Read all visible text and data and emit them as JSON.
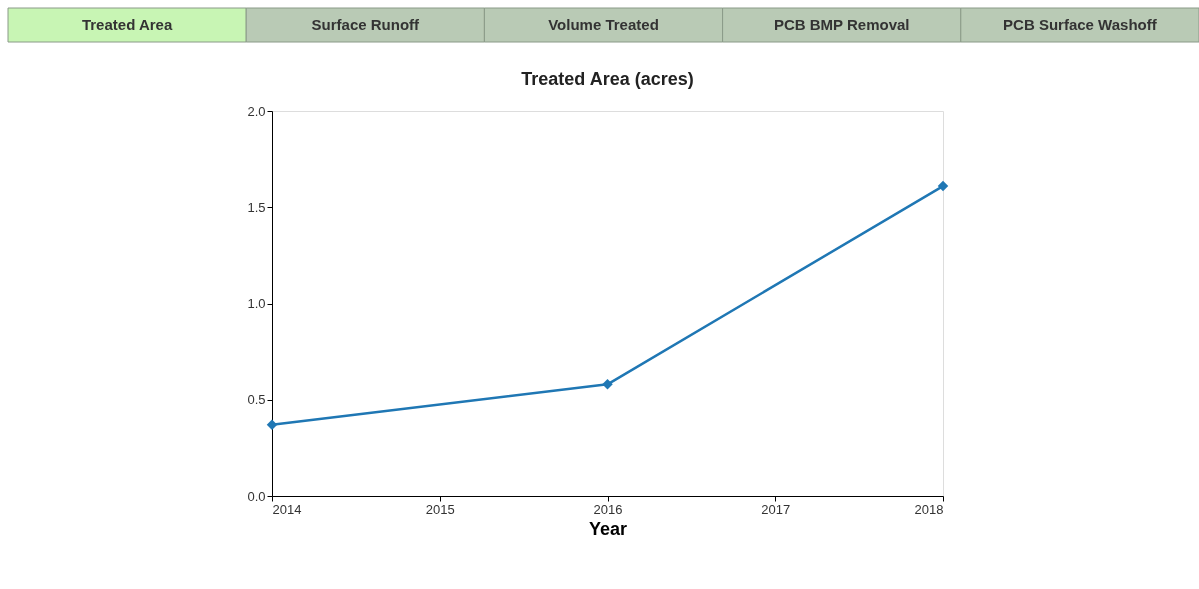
{
  "chart_data": {
    "type": "line",
    "title": "Treated Area (acres)",
    "xlabel": "Year",
    "x": [
      2014,
      2016,
      2018
    ],
    "series": [
      {
        "color": "#1f77b4",
        "values": [
          0.37,
          0.58,
          1.61
        ]
      }
    ],
    "xlim": [
      2014,
      2018
    ],
    "xticks": [
      2014,
      2015,
      2016,
      2017,
      2018
    ],
    "ylim": [
      0,
      2.0
    ],
    "yticks": [
      {
        "value": 0,
        "label": "0.0"
      },
      {
        "value": 0.5,
        "label": "0.5"
      },
      {
        "value": 1,
        "label": "1.0"
      },
      {
        "value": 1.5,
        "label": "1.5"
      },
      {
        "value": 2,
        "label": "2.0"
      }
    ],
    "marker": "diamond",
    "line_style": "solid",
    "grid": false,
    "annotations": [
      "Treated Area",
      "Surface Runoff",
      "Volume Treated",
      "PCB BMP Removal",
      "PCB Surface Washoff"
    ]
  }
}
